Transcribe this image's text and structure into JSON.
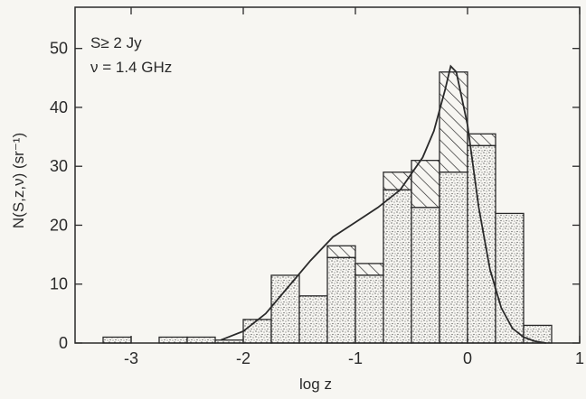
{
  "chart_data": {
    "type": "bar",
    "xlabel": "log z",
    "ylabel": "N(S,z,ν) (sr⁻¹)",
    "xlim": [
      -3.5,
      1
    ],
    "ylim": [
      0,
      57
    ],
    "xticks": [
      -3,
      -2,
      -1,
      0,
      1
    ],
    "yticks": [
      0,
      10,
      20,
      30,
      40,
      50
    ],
    "grid": false,
    "annotations": [
      "S≥ 2 Jy",
      "ν = 1.4 GHz"
    ],
    "bin_edges": [
      -3.25,
      -3.0,
      -2.75,
      -2.5,
      -2.25,
      -2.0,
      -1.75,
      -1.5,
      -1.25,
      -1.0,
      -0.75,
      -0.5,
      -0.25,
      0.0,
      0.25,
      0.5,
      0.75
    ],
    "series": [
      {
        "values": [
          1,
          0,
          1,
          1,
          0.5,
          4,
          11.5,
          8,
          14.5,
          11.5,
          26,
          23,
          29,
          33.5,
          22,
          3,
          1
        ]
      },
      {
        "values": [
          1,
          0,
          1,
          1,
          0.5,
          4,
          11.5,
          8,
          16.5,
          13.5,
          29,
          31,
          46,
          35.5,
          10.5,
          3,
          1
        ]
      }
    ],
    "curve": {
      "x": [
        -2.2,
        -2.0,
        -1.8,
        -1.6,
        -1.4,
        -1.2,
        -1.0,
        -0.8,
        -0.6,
        -0.4,
        -0.3,
        -0.2,
        -0.15,
        -0.1,
        0.0,
        0.1,
        0.2,
        0.3,
        0.4,
        0.5,
        0.6,
        0.7
      ],
      "y": [
        0.5,
        2,
        5,
        9.5,
        14,
        18,
        20.5,
        23,
        26,
        31.5,
        36,
        43,
        47,
        46,
        37,
        23,
        12.5,
        6,
        2.5,
        1,
        0.3,
        0
      ]
    }
  }
}
